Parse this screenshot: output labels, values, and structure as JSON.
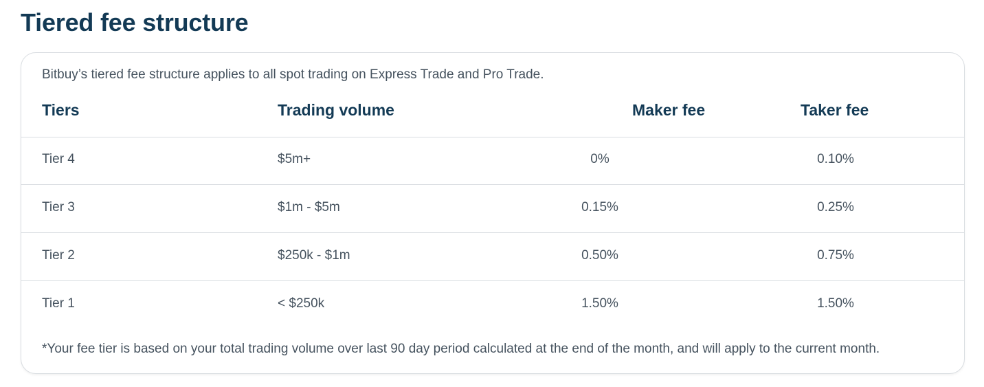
{
  "heading": "Tiered fee structure",
  "intro": "Bitbuy’s tiered fee structure applies to all spot trading on Express Trade and Pro Trade.",
  "columns": {
    "tier": "Tiers",
    "volume": "Trading volume",
    "maker": "Maker fee",
    "taker": "Taker fee"
  },
  "rows": [
    {
      "tier": "Tier 4",
      "volume": "$5m+",
      "maker": "0%",
      "taker": "0.10%"
    },
    {
      "tier": "Tier 3",
      "volume": "$1m - $5m",
      "maker": "0.15%",
      "taker": "0.25%"
    },
    {
      "tier": "Tier 2",
      "volume": "$250k - $1m",
      "maker": "0.50%",
      "taker": "0.75%"
    },
    {
      "tier": "Tier 1",
      "volume": "< $250k",
      "maker": "1.50%",
      "taker": "1.50%"
    }
  ],
  "footnote": "*Your fee tier is based on your total trading volume over last 90 day period calculated at the end of the month, and will apply to the current month.",
  "colors": {
    "heading": "#133a55",
    "body_text": "#45525e",
    "border": "#d9dde1"
  }
}
